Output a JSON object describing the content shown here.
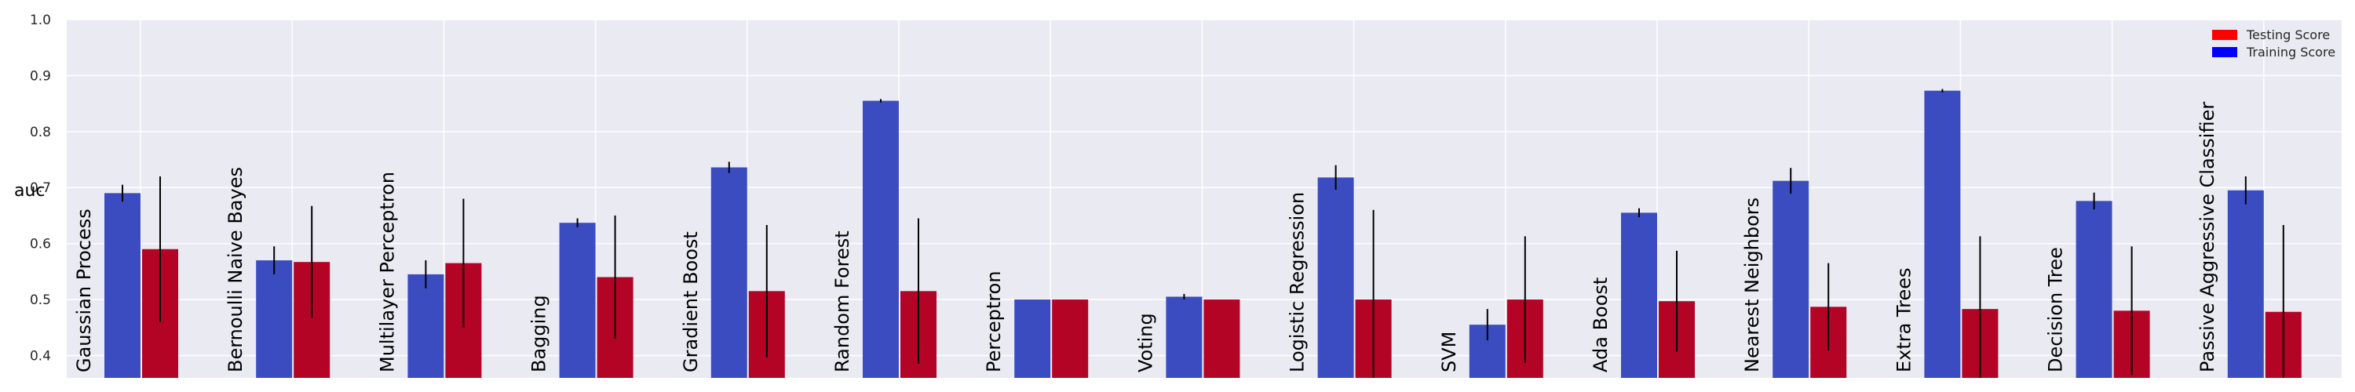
{
  "chart_data": {
    "type": "bar",
    "ylabel": "auc",
    "xlabel": "",
    "ylim": [
      0.36,
      1.0
    ],
    "yticks": [
      "0.4",
      "0.5",
      "0.6",
      "0.7",
      "0.8",
      "0.9",
      "1.0"
    ],
    "grid": true,
    "legend_position": "top-right",
    "categories": [
      "Gaussian Process",
      "Bernoulli Naive Bayes",
      "Multilayer Perceptron",
      "Bagging",
      "Gradient Boost",
      "Random Forest",
      "Perceptron",
      "Voting",
      "Logistic Regression",
      "SVM",
      "Ada Boost",
      "Nearest Neighbors",
      "Extra Trees",
      "Decision Tree",
      "Passive Aggressive Classifier"
    ],
    "series": [
      {
        "name": "Training Score",
        "color": "#3b4cc0",
        "legend_color": "#0000ff",
        "values": [
          0.69,
          0.57,
          0.545,
          0.637,
          0.736,
          0.855,
          0.5,
          0.505,
          0.718,
          0.455,
          0.655,
          0.712,
          0.873,
          0.676,
          0.695
        ],
        "errors": [
          0.015,
          0.025,
          0.025,
          0.008,
          0.01,
          0.003,
          0.0,
          0.005,
          0.022,
          0.028,
          0.008,
          0.023,
          0.003,
          0.015,
          0.025
        ]
      },
      {
        "name": "Testing Score",
        "color": "#b40426",
        "legend_color": "#ff0000",
        "values": [
          0.59,
          0.567,
          0.565,
          0.54,
          0.515,
          0.515,
          0.5,
          0.5,
          0.5,
          0.5,
          0.497,
          0.487,
          0.483,
          0.48,
          0.478
        ],
        "errors": [
          0.13,
          0.1,
          0.115,
          0.11,
          0.118,
          0.13,
          0.0,
          0.0,
          0.16,
          0.113,
          0.09,
          0.078,
          0.13,
          0.115,
          0.155
        ]
      }
    ]
  }
}
